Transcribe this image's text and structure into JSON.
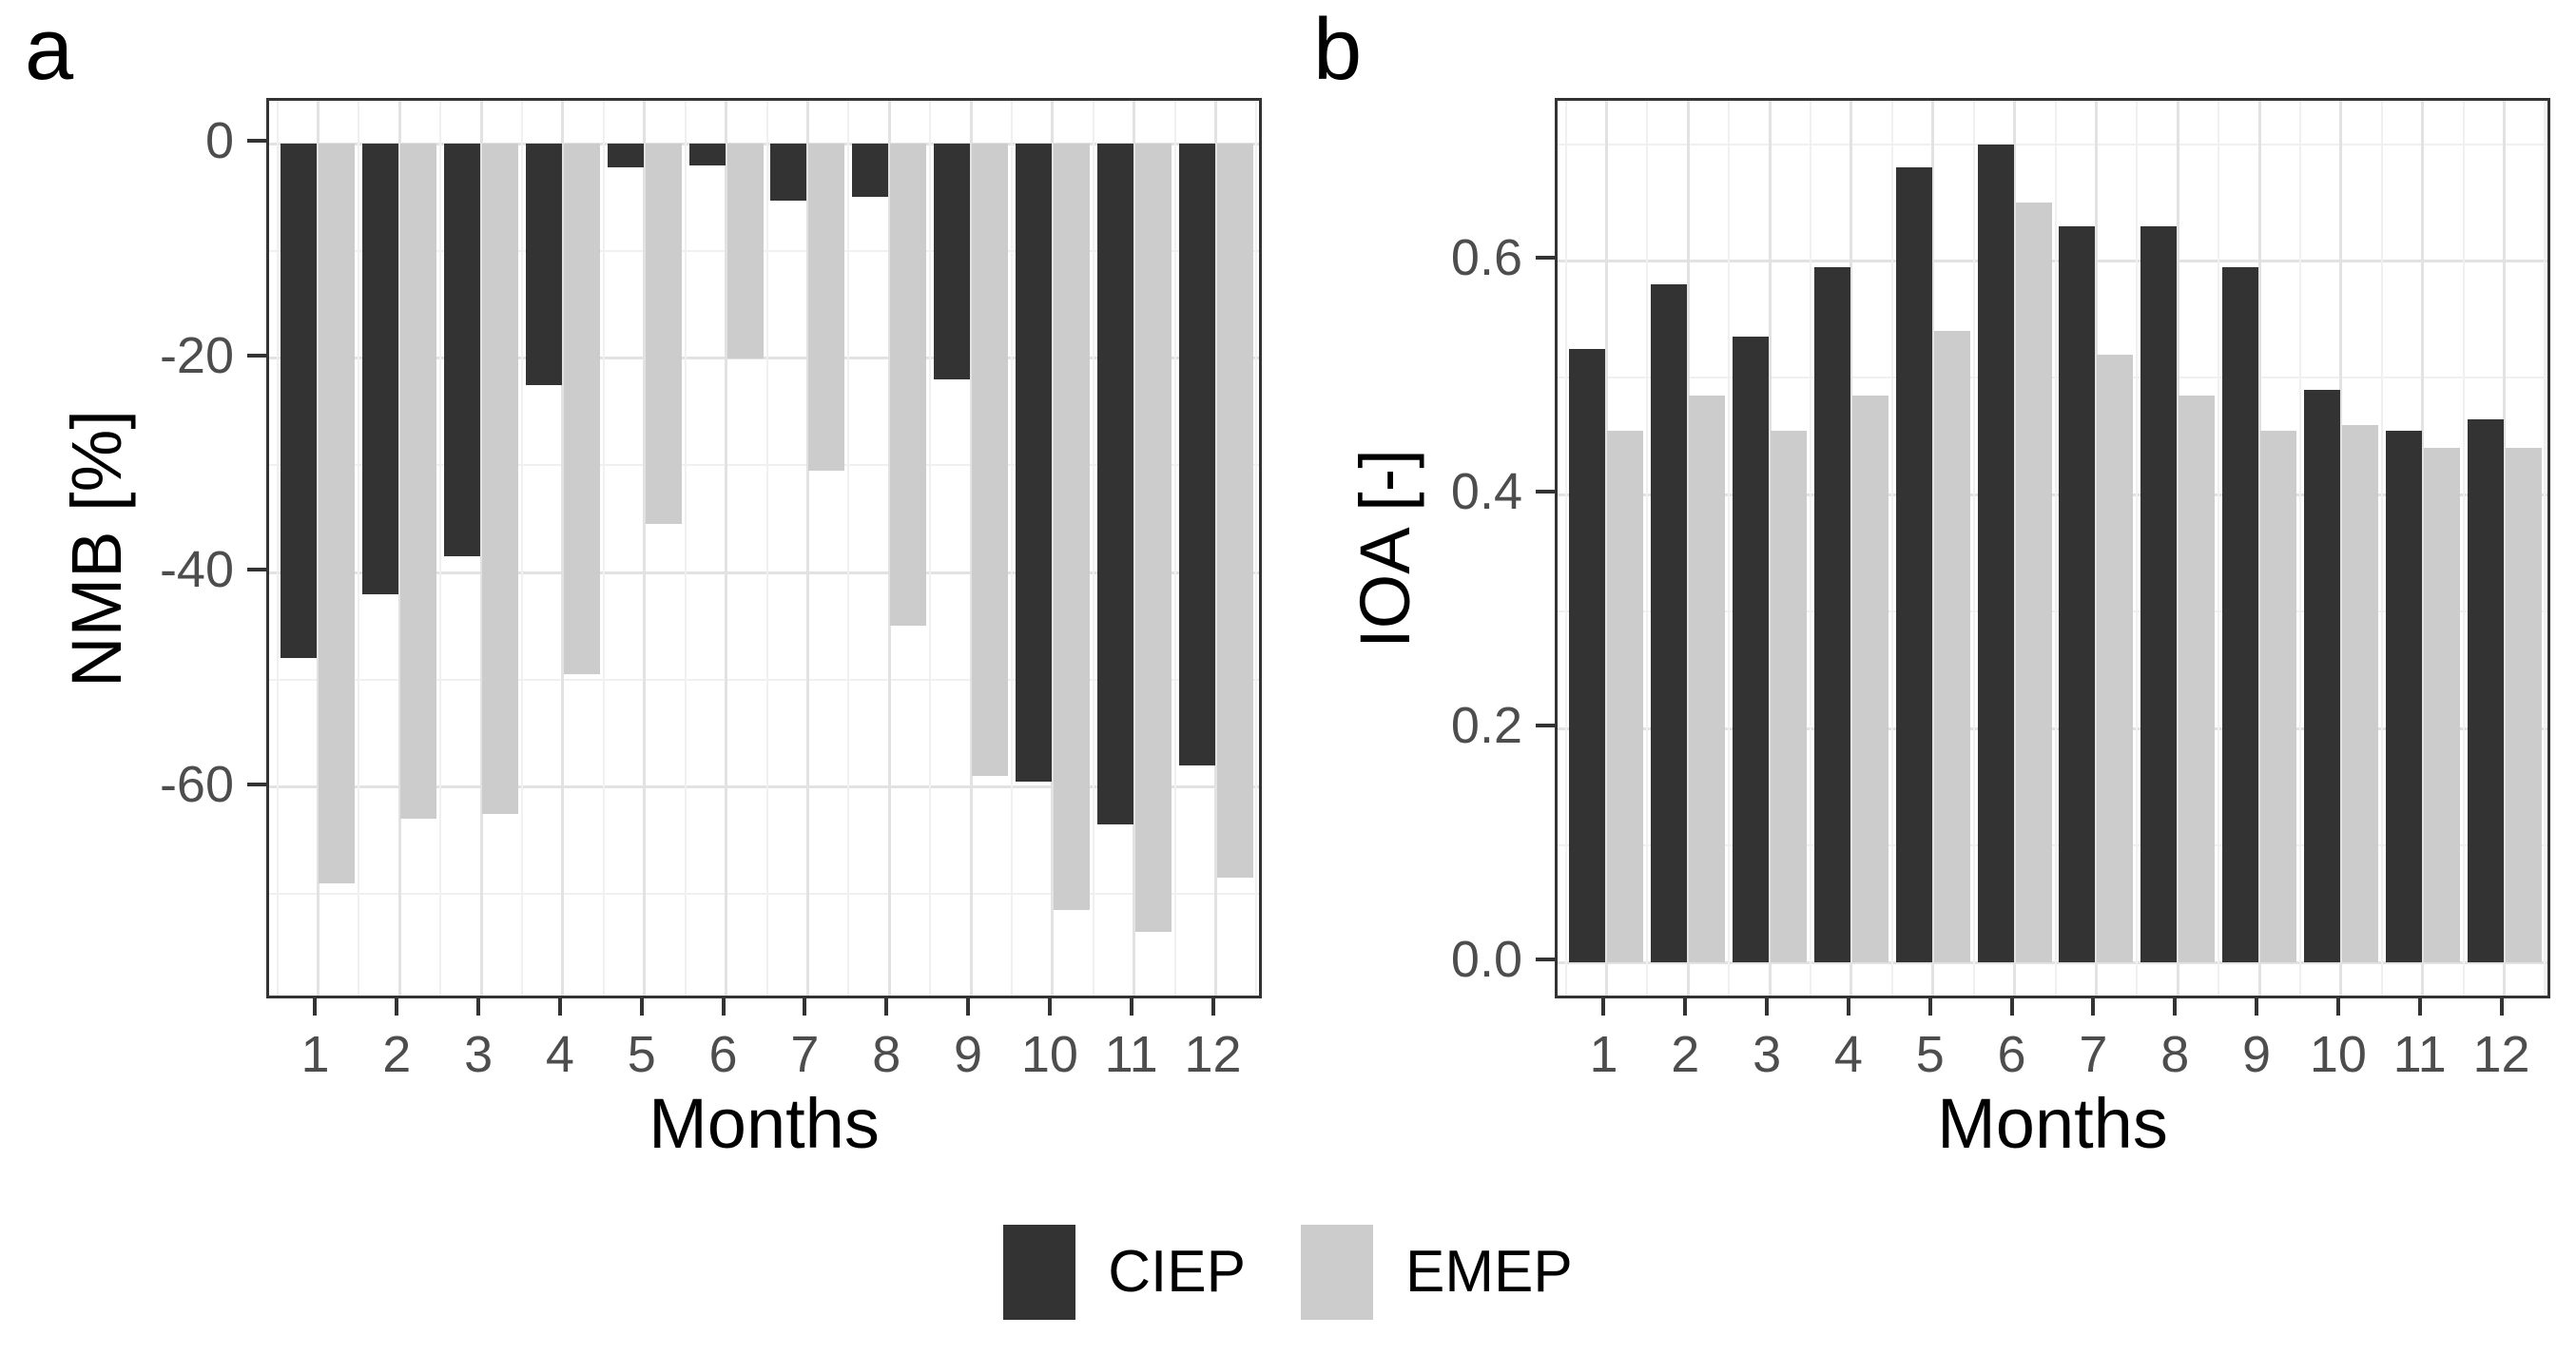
{
  "figure": {
    "background": "#ffffff",
    "panel_letters": [
      "a",
      "b"
    ]
  },
  "chart_data": [
    {
      "type": "bar",
      "panel_label": "a",
      "title": "",
      "xlabel": "Months",
      "ylabel": "NMB [%]",
      "categories": [
        1,
        2,
        3,
        4,
        5,
        6,
        7,
        8,
        9,
        10,
        11,
        12
      ],
      "series": [
        {
          "name": "CIEP",
          "color": "#333333",
          "values": [
            -48,
            -42,
            -38.5,
            -22.5,
            -2.2,
            -2,
            -5.3,
            -5,
            -22,
            -59.5,
            -63.5,
            -58
          ]
        },
        {
          "name": "EMEP",
          "color": "#cccccc",
          "values": [
            -69,
            -63,
            -62.5,
            -49.5,
            -35.5,
            -20,
            -30.5,
            -45,
            -59,
            -71.5,
            -73.5,
            -68.5
          ]
        }
      ],
      "yticks": [
        0,
        -20,
        -40,
        -60
      ],
      "ytick_labels": [
        "0",
        "-20",
        "-40",
        "-60"
      ],
      "ylim": [
        4,
        -80
      ],
      "grid": "on",
      "legend_position": "bottom"
    },
    {
      "type": "bar",
      "panel_label": "b",
      "title": "",
      "xlabel": "Months",
      "ylabel": "IOA [-]",
      "categories": [
        1,
        2,
        3,
        4,
        5,
        6,
        7,
        8,
        9,
        10,
        11,
        12
      ],
      "series": [
        {
          "name": "CIEP",
          "color": "#333333",
          "values": [
            0.525,
            0.58,
            0.535,
            0.595,
            0.68,
            0.7,
            0.63,
            0.63,
            0.595,
            0.49,
            0.455,
            0.465
          ]
        },
        {
          "name": "EMEP",
          "color": "#cccccc",
          "values": [
            0.455,
            0.485,
            0.455,
            0.485,
            0.54,
            0.65,
            0.52,
            0.485,
            0.455,
            0.46,
            0.44,
            0.44
          ]
        }
      ],
      "yticks": [
        0.0,
        0.2,
        0.4,
        0.6
      ],
      "ytick_labels": [
        "0.0",
        "0.2",
        "0.4",
        "0.6"
      ],
      "ylim": [
        0.737,
        -0.033
      ],
      "grid": "on",
      "legend_position": "bottom"
    }
  ],
  "legend": {
    "items": [
      {
        "label": "CIEP",
        "color": "#333333"
      },
      {
        "label": "EMEP",
        "color": "#cccccc"
      }
    ]
  },
  "colors": {
    "bar_dark": "#333333",
    "bar_light": "#cccccc",
    "grid_major": "#e2e2e2",
    "grid_minor": "#f0f0f0",
    "axis_text": "#4d4d4d",
    "axis_line": "#333333",
    "background": "#ffffff"
  }
}
